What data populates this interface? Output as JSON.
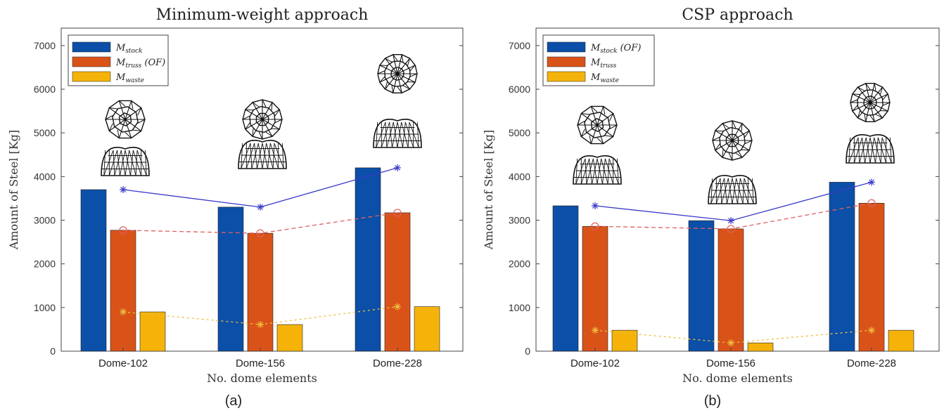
{
  "colors": {
    "stock": "#0b4fa8",
    "truss": "#d95319",
    "waste": "#f5b30a",
    "stock_line": "#3a3ac8",
    "truss_line": "#e06060",
    "waste_line": "#f0c040"
  },
  "legend_items": [
    {
      "base": "M",
      "sub": "stock",
      "extra_a": "",
      "extra_b": " (OF)"
    },
    {
      "base": "M",
      "sub": "truss",
      "extra_a": " (OF)",
      "extra_b": ""
    },
    {
      "base": "M",
      "sub": "waste",
      "extra_a": "",
      "extra_b": ""
    }
  ],
  "icon_names": [
    "dome-top-view-icon",
    "dome-side-view-icon"
  ],
  "chart_data": [
    {
      "type": "bar",
      "title": "Minimum-weight approach",
      "xlabel": "No. dome elements",
      "ylabel": "Amount of Steel [Kg]",
      "caption": "(a)",
      "categories": [
        "Dome-102",
        "Dome-156",
        "Dome-228"
      ],
      "ylim": [
        0,
        7400
      ],
      "yticks": [
        0,
        1000,
        2000,
        3000,
        4000,
        5000,
        6000,
        7000
      ],
      "legend_position": "top-left",
      "series": [
        {
          "key": "stock",
          "values": [
            3700,
            3300,
            4200
          ]
        },
        {
          "key": "truss",
          "values": [
            2770,
            2700,
            3170
          ]
        },
        {
          "key": "waste",
          "values": [
            900,
            610,
            1020
          ]
        }
      ]
    },
    {
      "type": "bar",
      "title": "CSP approach",
      "xlabel": "No. dome elements",
      "ylabel": "Amount of Steel [Kg]",
      "caption": "(b)",
      "categories": [
        "Dome-102",
        "Dome-156",
        "Dome-228"
      ],
      "ylim": [
        0,
        7400
      ],
      "yticks": [
        0,
        1000,
        2000,
        3000,
        4000,
        5000,
        6000,
        7000
      ],
      "legend_position": "top-left",
      "series": [
        {
          "key": "stock",
          "values": [
            3330,
            2990,
            3870
          ]
        },
        {
          "key": "truss",
          "values": [
            2860,
            2800,
            3390
          ]
        },
        {
          "key": "waste",
          "values": [
            480,
            190,
            480
          ]
        }
      ]
    }
  ]
}
